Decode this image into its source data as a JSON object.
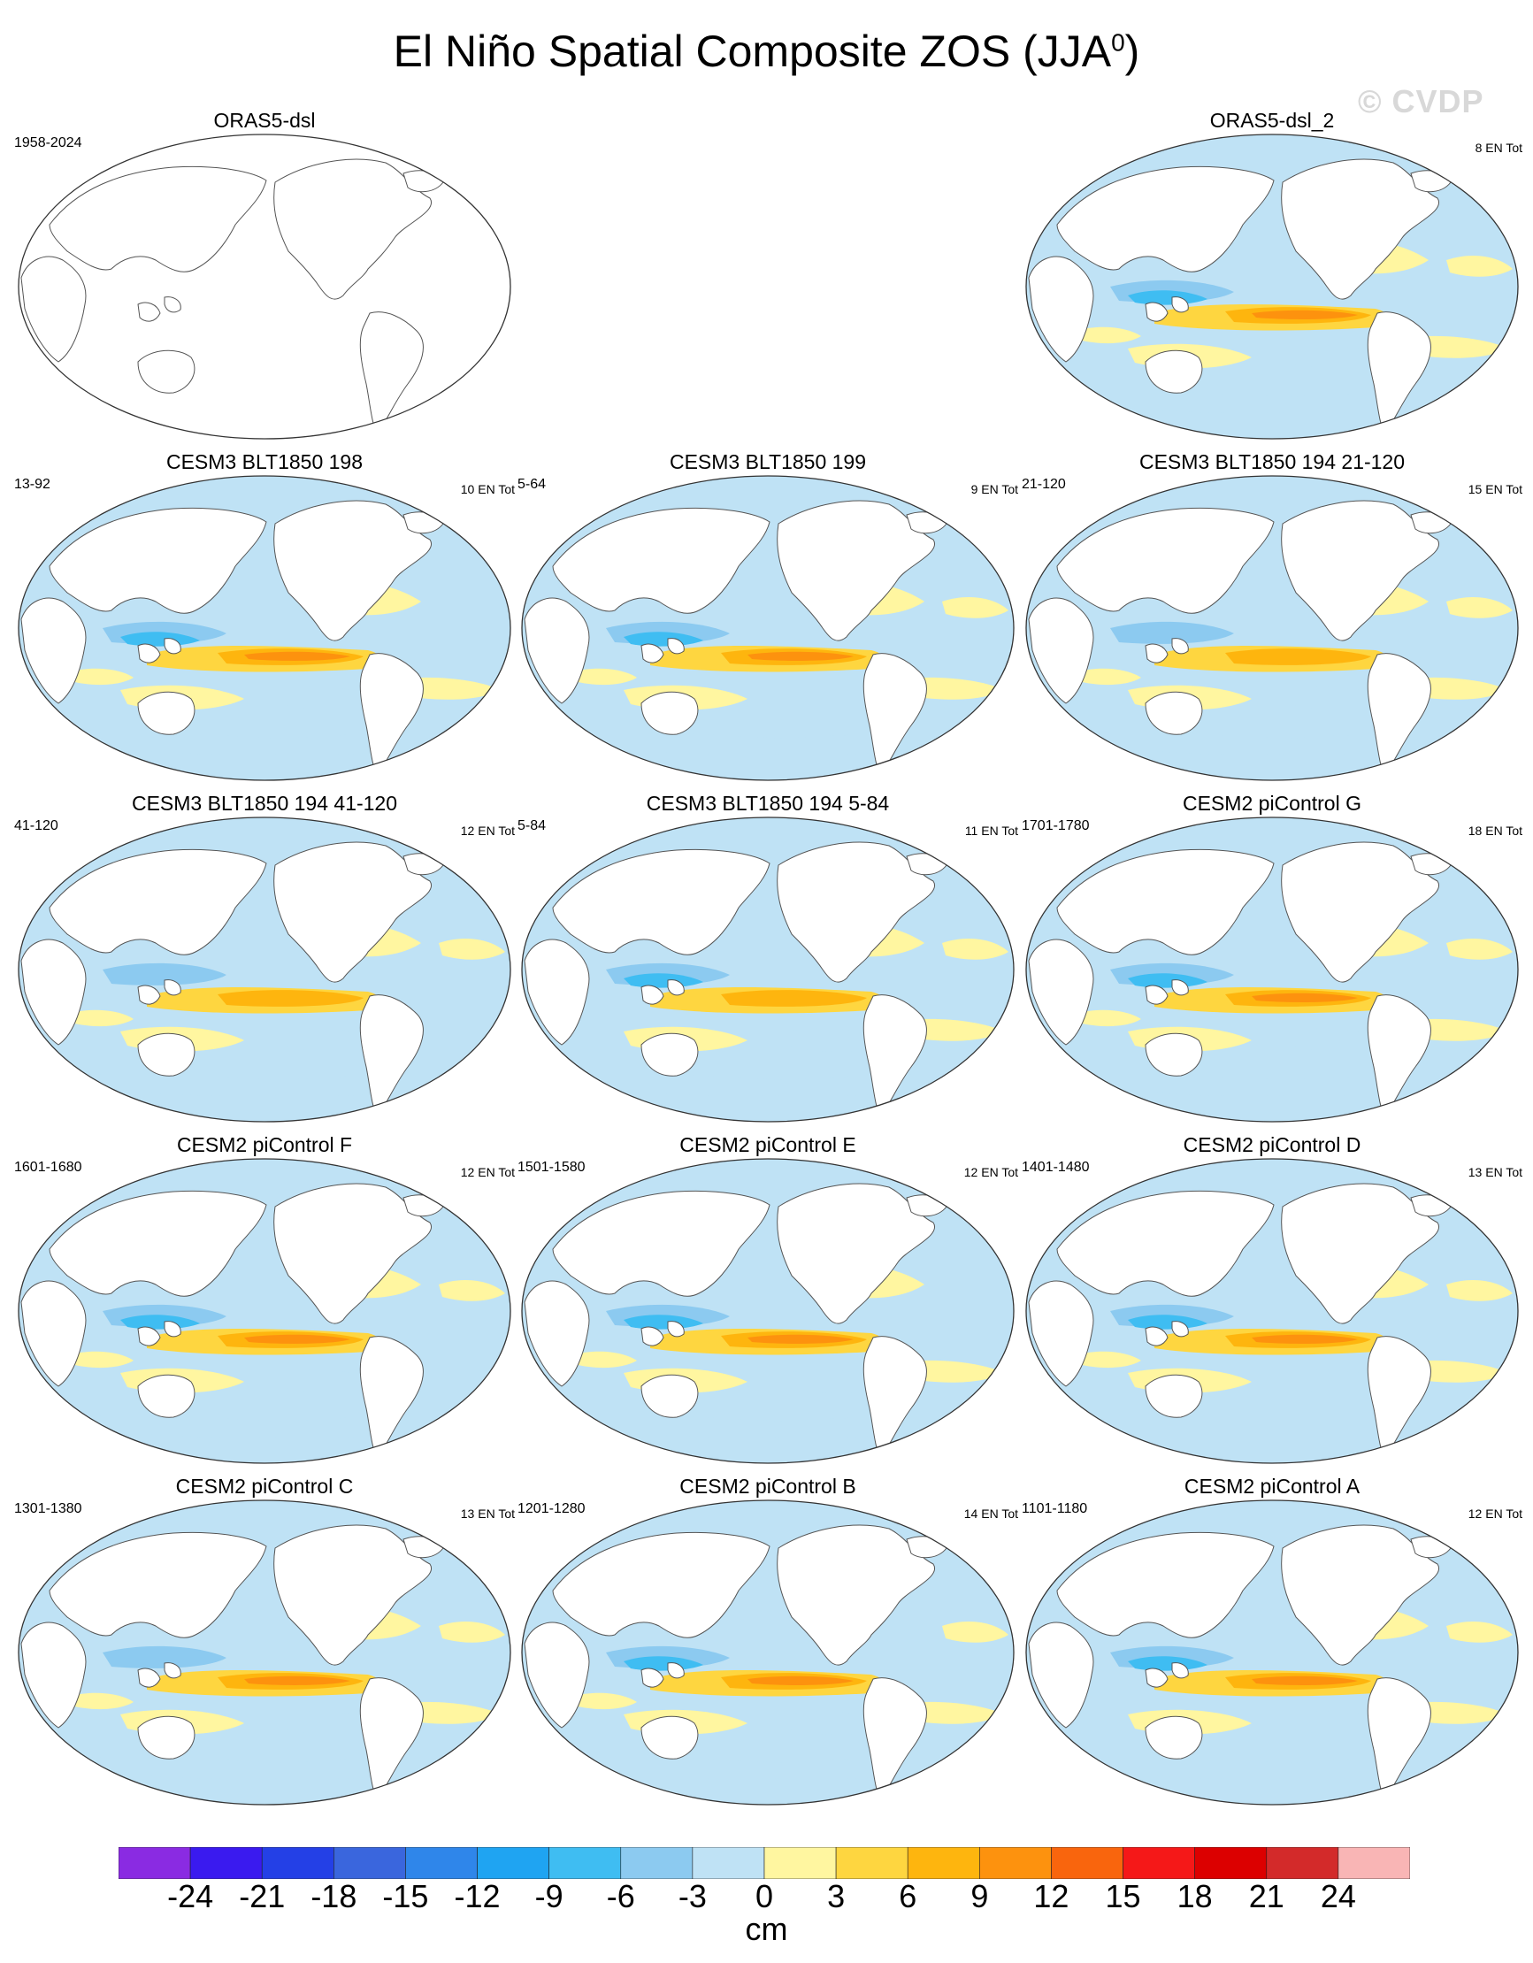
{
  "figure": {
    "title": "El Niño Spatial Composite ZOS (JJA",
    "title_superscript": "0",
    "title_suffix": ")",
    "watermark": "© CVDP"
  },
  "panels": [
    {
      "title": "ORAS5-dsl",
      "left_label": "1958-2024",
      "right_label": "",
      "has_data": false
    },
    {
      "title": "ORAS5-dsl_2",
      "left_label": "",
      "right_label": "8 EN Tot",
      "has_data": true
    },
    {
      "title": "CESM3 BLT1850 198",
      "left_label": "13-92",
      "right_label": "10 EN Tot",
      "has_data": true
    },
    {
      "title": "CESM3 BLT1850 199",
      "left_label": "5-64",
      "right_label": "9 EN Tot",
      "has_data": true
    },
    {
      "title": "CESM3 BLT1850 194 21-120",
      "left_label": "21-120",
      "right_label": "15 EN Tot",
      "has_data": true
    },
    {
      "title": "CESM3 BLT1850 194 41-120",
      "left_label": "41-120",
      "right_label": "12 EN Tot",
      "has_data": true
    },
    {
      "title": "CESM3 BLT1850 194 5-84",
      "left_label": "5-84",
      "right_label": "11 EN Tot",
      "has_data": true
    },
    {
      "title": "CESM2 piControl G",
      "left_label": "1701-1780",
      "right_label": "18 EN Tot",
      "has_data": true
    },
    {
      "title": "CESM2 piControl F",
      "left_label": "1601-1680",
      "right_label": "12 EN Tot",
      "has_data": true
    },
    {
      "title": "CESM2 piControl E",
      "left_label": "1501-1580",
      "right_label": "12 EN Tot",
      "has_data": true
    },
    {
      "title": "CESM2 piControl D",
      "left_label": "1401-1480",
      "right_label": "13 EN Tot",
      "has_data": true
    },
    {
      "title": "CESM2 piControl C",
      "left_label": "1301-1380",
      "right_label": "13 EN Tot",
      "has_data": true
    },
    {
      "title": "CESM2 piControl B",
      "left_label": "1201-1280",
      "right_label": "14 EN Tot",
      "has_data": true
    },
    {
      "title": "CESM2 piControl A",
      "left_label": "1101-1180",
      "right_label": "12 EN Tot",
      "has_data": true
    }
  ],
  "colorbar": {
    "units": "cm",
    "ticks": [
      "-24",
      "-21",
      "-18",
      "-15",
      "-12",
      "-9",
      "-6",
      "-3",
      "0",
      "3",
      "6",
      "9",
      "12",
      "15",
      "18",
      "21",
      "24"
    ],
    "colors": [
      "#8a2be2",
      "#3a1aef",
      "#2440e6",
      "#3a66dd",
      "#2f86ea",
      "#1fa4f2",
      "#3fbdf2",
      "#8ccaf0",
      "#bfe2f5",
      "#fff6a0",
      "#fed640",
      "#feb50e",
      "#fd920e",
      "#f9650d",
      "#f51818",
      "#dc0000",
      "#d32a2a",
      "#f9b5b5"
    ]
  }
}
